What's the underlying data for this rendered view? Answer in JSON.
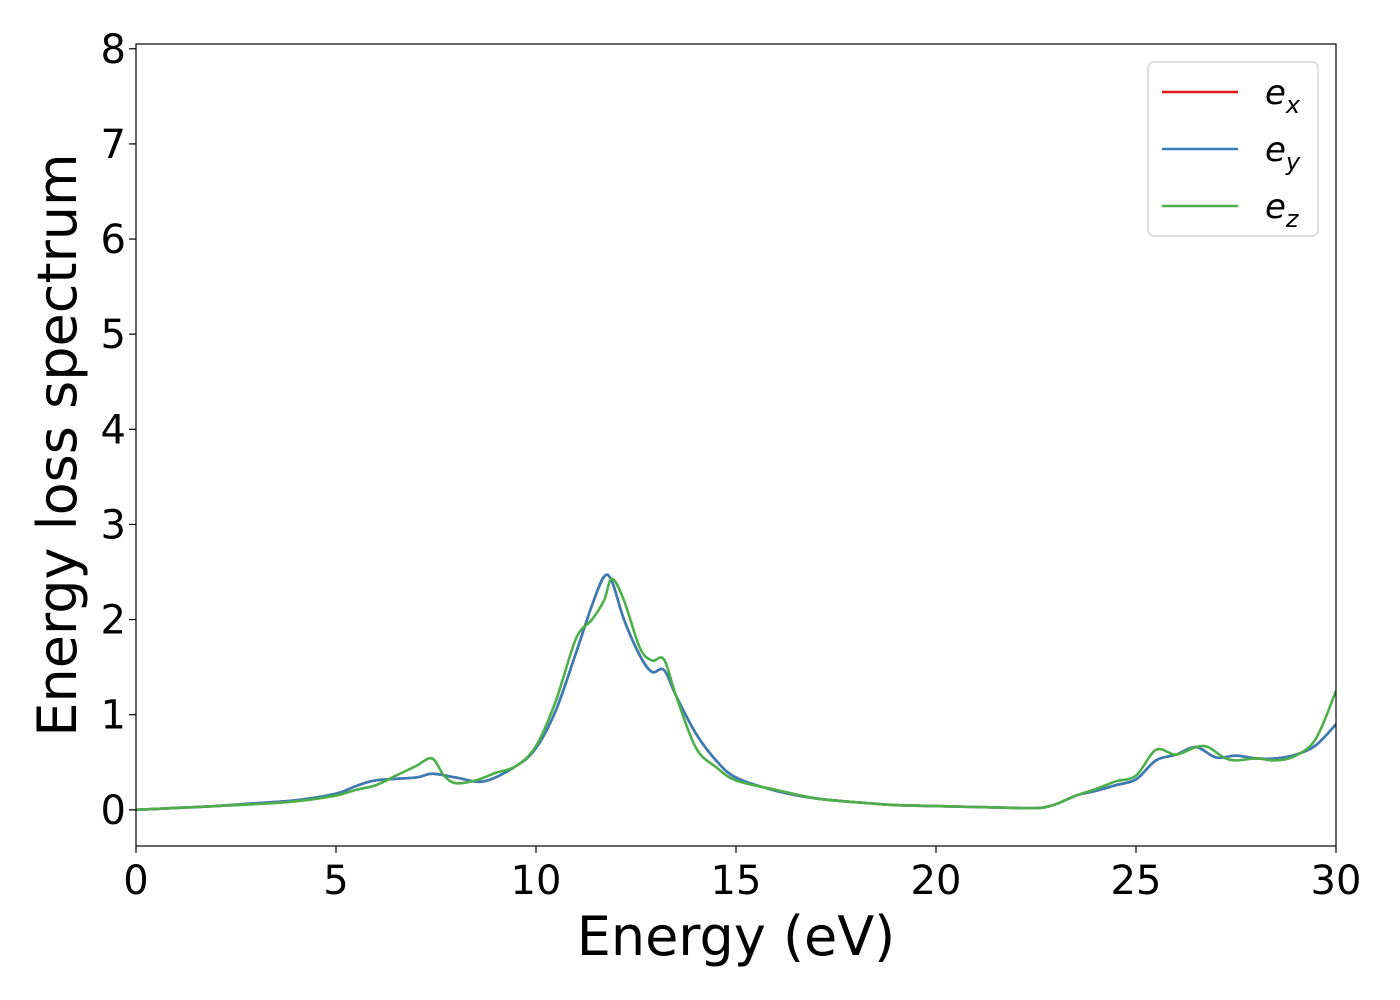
{
  "chart_data": {
    "type": "line",
    "title": "",
    "xlabel": "Energy (eV)",
    "ylabel": "Energy loss spectrum",
    "xlim": [
      0,
      30
    ],
    "ylim": [
      -0.38,
      8.05
    ],
    "xticks": [
      "0",
      "5",
      "10",
      "15",
      "20",
      "25",
      "30"
    ],
    "yticks": [
      "0",
      "1",
      "2",
      "3",
      "4",
      "5",
      "6",
      "7",
      "8"
    ],
    "grid": false,
    "legend_position": "top-right",
    "series": [
      {
        "name": "e",
        "subscript": "x",
        "color": "#e41a1c",
        "points": [
          [
            0,
            0.0
          ],
          [
            1,
            0.02
          ],
          [
            2,
            0.04
          ],
          [
            3,
            0.07
          ],
          [
            4,
            0.1
          ],
          [
            5,
            0.17
          ],
          [
            5.5,
            0.25
          ],
          [
            6,
            0.31
          ],
          [
            7,
            0.34
          ],
          [
            7.4,
            0.38
          ],
          [
            8,
            0.34
          ],
          [
            8.7,
            0.3
          ],
          [
            9.5,
            0.46
          ],
          [
            10,
            0.65
          ],
          [
            10.5,
            1.05
          ],
          [
            11,
            1.65
          ],
          [
            11.4,
            2.15
          ],
          [
            11.7,
            2.45
          ],
          [
            11.9,
            2.4
          ],
          [
            12.2,
            2.0
          ],
          [
            12.6,
            1.62
          ],
          [
            12.9,
            1.45
          ],
          [
            13.2,
            1.47
          ],
          [
            13.5,
            1.2
          ],
          [
            14,
            0.8
          ],
          [
            14.5,
            0.52
          ],
          [
            15,
            0.34
          ],
          [
            16,
            0.2
          ],
          [
            17,
            0.12
          ],
          [
            18,
            0.08
          ],
          [
            19,
            0.05
          ],
          [
            20,
            0.04
          ],
          [
            21,
            0.03
          ],
          [
            22,
            0.02
          ],
          [
            22.6,
            0.02
          ],
          [
            23,
            0.06
          ],
          [
            23.5,
            0.15
          ],
          [
            24,
            0.2
          ],
          [
            24.5,
            0.26
          ],
          [
            25,
            0.32
          ],
          [
            25.5,
            0.52
          ],
          [
            26,
            0.58
          ],
          [
            26.5,
            0.66
          ],
          [
            27,
            0.55
          ],
          [
            27.5,
            0.57
          ],
          [
            28,
            0.54
          ],
          [
            28.5,
            0.54
          ],
          [
            29,
            0.58
          ],
          [
            29.5,
            0.68
          ],
          [
            30,
            0.9
          ]
        ]
      },
      {
        "name": "e",
        "subscript": "y",
        "color": "#377eb8",
        "points": [
          [
            0,
            0.0
          ],
          [
            1,
            0.02
          ],
          [
            2,
            0.04
          ],
          [
            3,
            0.07
          ],
          [
            4,
            0.1
          ],
          [
            5,
            0.17
          ],
          [
            5.5,
            0.25
          ],
          [
            6,
            0.31
          ],
          [
            7,
            0.34
          ],
          [
            7.4,
            0.38
          ],
          [
            8,
            0.34
          ],
          [
            8.7,
            0.3
          ],
          [
            9.5,
            0.46
          ],
          [
            10,
            0.65
          ],
          [
            10.5,
            1.05
          ],
          [
            11,
            1.65
          ],
          [
            11.4,
            2.15
          ],
          [
            11.7,
            2.45
          ],
          [
            11.9,
            2.4
          ],
          [
            12.2,
            2.0
          ],
          [
            12.6,
            1.62
          ],
          [
            12.9,
            1.45
          ],
          [
            13.2,
            1.47
          ],
          [
            13.5,
            1.2
          ],
          [
            14,
            0.8
          ],
          [
            14.5,
            0.52
          ],
          [
            15,
            0.34
          ],
          [
            16,
            0.2
          ],
          [
            17,
            0.12
          ],
          [
            18,
            0.08
          ],
          [
            19,
            0.05
          ],
          [
            20,
            0.04
          ],
          [
            21,
            0.03
          ],
          [
            22,
            0.02
          ],
          [
            22.6,
            0.02
          ],
          [
            23,
            0.06
          ],
          [
            23.5,
            0.15
          ],
          [
            24,
            0.2
          ],
          [
            24.5,
            0.26
          ],
          [
            25,
            0.32
          ],
          [
            25.5,
            0.52
          ],
          [
            26,
            0.58
          ],
          [
            26.5,
            0.66
          ],
          [
            27,
            0.55
          ],
          [
            27.5,
            0.57
          ],
          [
            28,
            0.54
          ],
          [
            28.5,
            0.54
          ],
          [
            29,
            0.58
          ],
          [
            29.5,
            0.68
          ],
          [
            30,
            0.9
          ]
        ]
      },
      {
        "name": "e",
        "subscript": "z",
        "color": "#4daf4a",
        "points": [
          [
            0,
            0.0
          ],
          [
            1,
            0.02
          ],
          [
            2,
            0.04
          ],
          [
            3,
            0.06
          ],
          [
            4,
            0.09
          ],
          [
            5,
            0.15
          ],
          [
            5.5,
            0.21
          ],
          [
            6,
            0.26
          ],
          [
            6.5,
            0.36
          ],
          [
            7,
            0.46
          ],
          [
            7.4,
            0.54
          ],
          [
            7.7,
            0.36
          ],
          [
            8,
            0.28
          ],
          [
            8.5,
            0.31
          ],
          [
            9,
            0.39
          ],
          [
            9.5,
            0.46
          ],
          [
            10,
            0.67
          ],
          [
            10.5,
            1.15
          ],
          [
            11,
            1.8
          ],
          [
            11.4,
            2.0
          ],
          [
            11.7,
            2.2
          ],
          [
            11.9,
            2.43
          ],
          [
            12.2,
            2.2
          ],
          [
            12.6,
            1.7
          ],
          [
            12.9,
            1.57
          ],
          [
            13.2,
            1.58
          ],
          [
            13.5,
            1.2
          ],
          [
            14,
            0.65
          ],
          [
            14.5,
            0.45
          ],
          [
            15,
            0.31
          ],
          [
            16,
            0.21
          ],
          [
            17,
            0.12
          ],
          [
            18,
            0.08
          ],
          [
            19,
            0.05
          ],
          [
            20,
            0.04
          ],
          [
            21,
            0.03
          ],
          [
            22,
            0.02
          ],
          [
            22.6,
            0.02
          ],
          [
            23,
            0.06
          ],
          [
            23.5,
            0.15
          ],
          [
            24,
            0.22
          ],
          [
            24.5,
            0.3
          ],
          [
            25,
            0.36
          ],
          [
            25.5,
            0.63
          ],
          [
            26,
            0.58
          ],
          [
            26.5,
            0.66
          ],
          [
            26.8,
            0.66
          ],
          [
            27.2,
            0.55
          ],
          [
            27.5,
            0.52
          ],
          [
            28,
            0.54
          ],
          [
            28.5,
            0.52
          ],
          [
            29,
            0.57
          ],
          [
            29.5,
            0.75
          ],
          [
            30,
            1.25
          ]
        ]
      }
    ]
  }
}
